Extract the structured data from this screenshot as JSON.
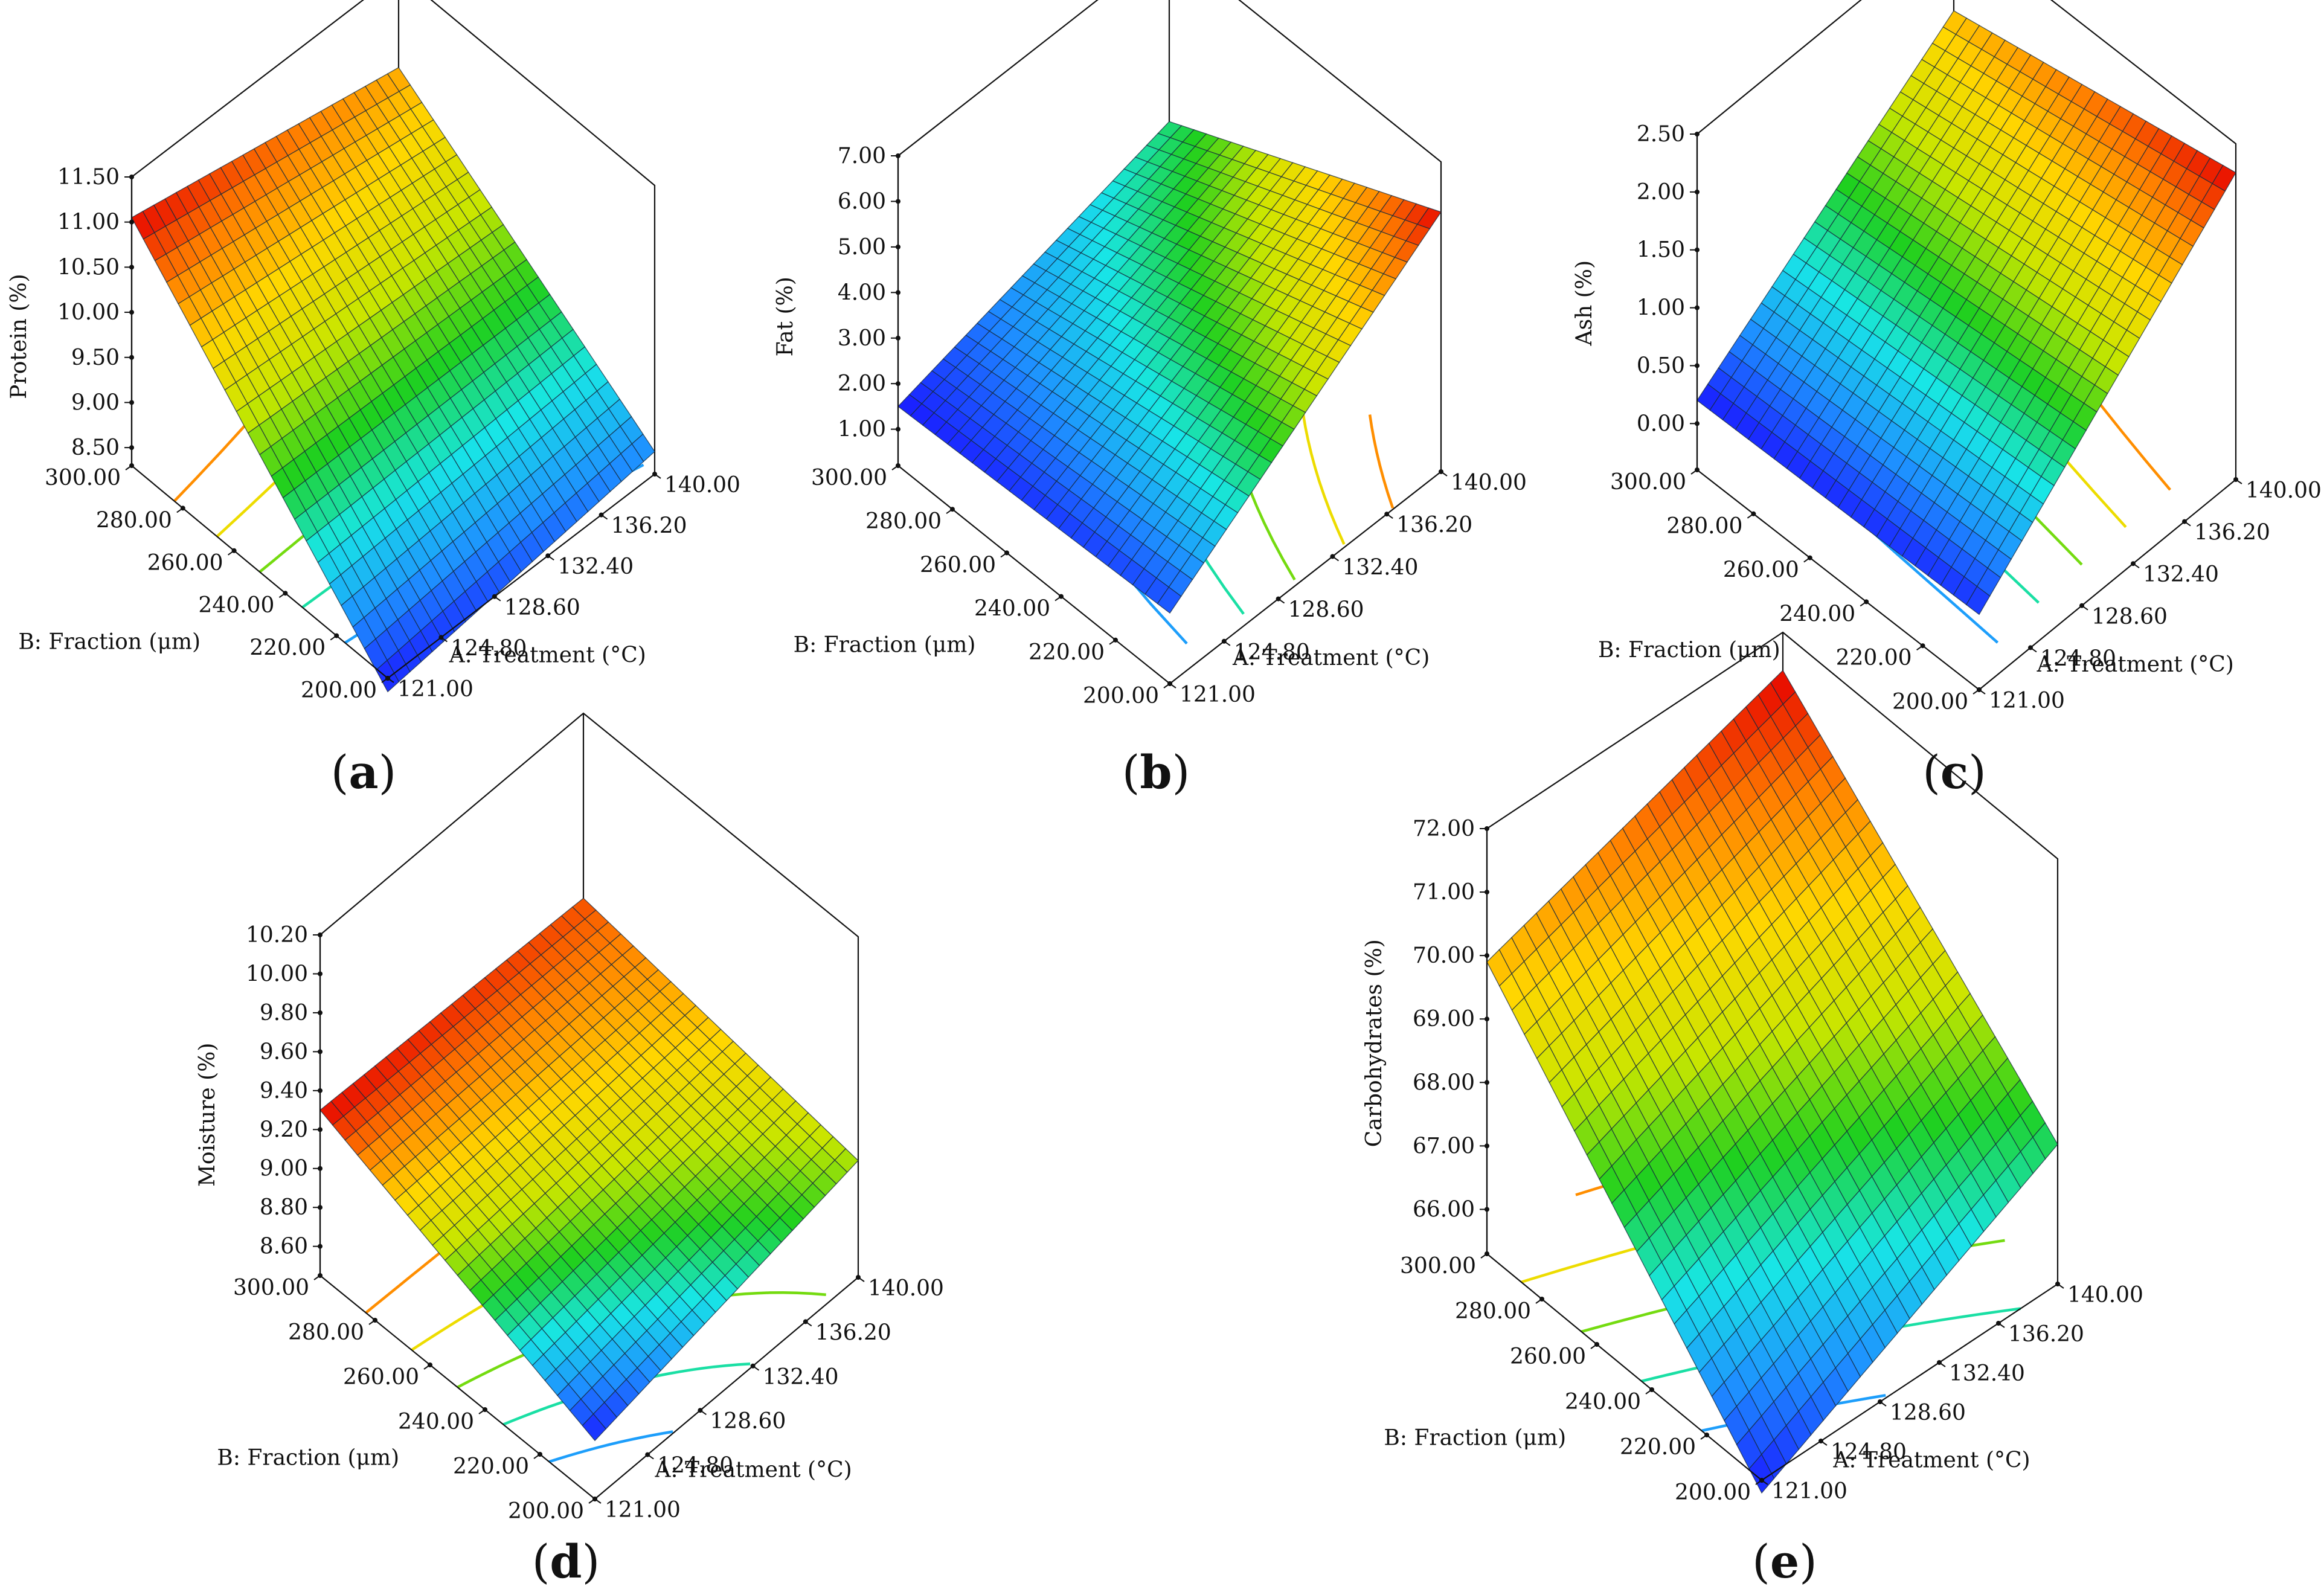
{
  "figure": {
    "panel_labels": [
      [
        "(",
        "a",
        ")"
      ],
      [
        "(",
        "b",
        ")"
      ],
      [
        "(",
        "c",
        ")"
      ],
      [
        "(",
        "d",
        ")"
      ],
      [
        "(",
        "e",
        ")"
      ]
    ]
  },
  "colors": {
    "axis": "#111111",
    "colormap": [
      "#1a1aff",
      "#1e90ff",
      "#18e6e6",
      "#1fd01f",
      "#c8e600",
      "#ffd700",
      "#ff7f00",
      "#e60000"
    ],
    "grid": "#14283c"
  },
  "chart_data": [
    {
      "type": "surface",
      "id": "a",
      "title": "(a)",
      "zlabel": "Protein (%)",
      "xlabel": "A: Treatment (°C)",
      "ylabel": "B: Fraction (μm)",
      "x_ticks": [
        "121.00",
        "124.80",
        "128.60",
        "132.40",
        "136.20",
        "140.00"
      ],
      "y_ticks": [
        "200.00",
        "220.00",
        "240.00",
        "260.00",
        "280.00",
        "300.00"
      ],
      "z_ticks": [
        "8.50",
        "9.00",
        "9.50",
        "10.00",
        "10.50",
        "11.00",
        "11.50"
      ],
      "xlim": [
        121,
        140
      ],
      "ylim": [
        200,
        300
      ],
      "zlim": [
        8.3,
        11.5
      ],
      "surface_corners": {
        "x121_y200": 8.15,
        "x140_y200": 8.55,
        "x121_y300": 11.05,
        "x140_y300": 10.45
      }
    },
    {
      "type": "surface",
      "id": "b",
      "title": "(b)",
      "zlabel": "Fat (%)",
      "xlabel": "A: Treatment (°C)",
      "ylabel": "B: Fraction (μm)",
      "x_ticks": [
        "121.00",
        "124.80",
        "128.60",
        "132.40",
        "136.20",
        "140.00"
      ],
      "y_ticks": [
        "200.00",
        "220.00",
        "240.00",
        "260.00",
        "280.00",
        "300.00"
      ],
      "z_ticks": [
        "1.00",
        "2.00",
        "3.00",
        "4.00",
        "5.00",
        "6.00",
        "7.00"
      ],
      "xlim": [
        121,
        140
      ],
      "ylim": [
        200,
        300
      ],
      "zlim": [
        0.2,
        7.0
      ],
      "surface_corners": {
        "x121_y200": 1.75,
        "x140_y200": 5.9,
        "x121_y300": 1.5,
        "x140_y300": 3.1
      }
    },
    {
      "type": "surface",
      "id": "c",
      "title": "(c)",
      "zlabel": "Ash (%)",
      "xlabel": "A: Treatment (°C)",
      "ylabel": "B: Fraction (μm)",
      "x_ticks": [
        "121.00",
        "124.80",
        "128.60",
        "132.40",
        "136.20",
        "140.00"
      ],
      "y_ticks": [
        "200.00",
        "220.00",
        "240.00",
        "260.00",
        "280.00",
        "300.00"
      ],
      "z_ticks": [
        "0.00",
        "0.50",
        "1.00",
        "1.50",
        "2.00",
        "2.50"
      ],
      "xlim": [
        121,
        140
      ],
      "ylim": [
        200,
        300
      ],
      "zlim": [
        -0.4,
        2.5
      ],
      "surface_corners": {
        "x121_y200": 0.25,
        "x140_y200": 2.25,
        "x121_y300": 0.2,
        "x140_y300": 1.75
      }
    },
    {
      "type": "surface",
      "id": "d",
      "title": "(d)",
      "zlabel": "Moisture (%)",
      "xlabel": "A: Treatment (°C)",
      "ylabel": "B: Fraction (μm)",
      "x_ticks": [
        "121.00",
        "124.80",
        "128.60",
        "132.40",
        "136.20",
        "140.00"
      ],
      "y_ticks": [
        "200.00",
        "220.00",
        "240.00",
        "260.00",
        "280.00",
        "300.00"
      ],
      "z_ticks": [
        "8.60",
        "8.80",
        "9.00",
        "9.20",
        "9.40",
        "9.60",
        "9.80",
        "10.00",
        "10.20"
      ],
      "xlim": [
        121,
        140
      ],
      "ylim": [
        200,
        300
      ],
      "zlim": [
        8.45,
        10.2
      ],
      "surface_corners": {
        "x121_y200": 8.75,
        "x140_y200": 9.05,
        "x121_y300": 9.3,
        "x140_y300": 9.25
      }
    },
    {
      "type": "surface",
      "id": "e",
      "title": "(e)",
      "zlabel": "Carbohydrates (%)",
      "xlabel": "A: Treatment (°C)",
      "ylabel": "B: Fraction (μm)",
      "x_ticks": [
        "121.00",
        "124.80",
        "128.60",
        "132.40",
        "136.20",
        "140.00"
      ],
      "y_ticks": [
        "200.00",
        "220.00",
        "240.00",
        "260.00",
        "280.00",
        "300.00"
      ],
      "z_ticks": [
        "66.00",
        "67.00",
        "68.00",
        "69.00",
        "70.00",
        "71.00",
        "72.00"
      ],
      "xlim": [
        121,
        140
      ],
      "ylim": [
        200,
        300
      ],
      "zlim": [
        65.3,
        72.0
      ],
      "surface_corners": {
        "x121_y200": 65.1,
        "x140_y200": 67.5,
        "x121_y300": 69.9,
        "x140_y300": 71.4
      }
    }
  ]
}
